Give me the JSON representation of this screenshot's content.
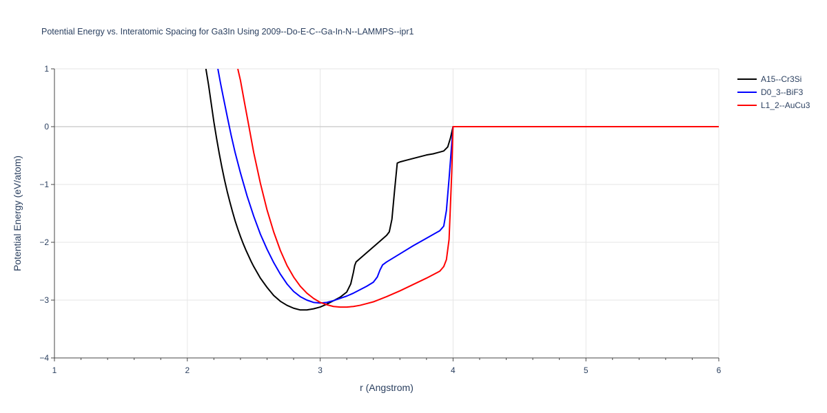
{
  "chart_data": {
    "type": "line",
    "title": "Potential Energy vs. Interatomic Spacing for Ga3In Using 2009--Do-E-C--Ga-In-N--LAMMPS--ipr1",
    "xlabel": "r (Angstrom)",
    "ylabel": "Potential Energy (eV/atom)",
    "xlim": [
      1,
      6
    ],
    "ylim": [
      -4,
      1
    ],
    "xticks": [
      1,
      2,
      3,
      4,
      5,
      6
    ],
    "yticks": [
      -4,
      -3,
      -2,
      -1,
      0,
      1
    ],
    "xtick_labels": [
      "1",
      "2",
      "3",
      "4",
      "5",
      "6"
    ],
    "ytick_labels": [
      "−4",
      "−3",
      "−2",
      "−1",
      "0",
      "1"
    ],
    "grid": true,
    "legend_position": "top-right",
    "series": [
      {
        "name": "A15--Cr3Si",
        "color": "#000000",
        "x": [
          2.14,
          2.16,
          2.18,
          2.2,
          2.22,
          2.24,
          2.26,
          2.28,
          2.3,
          2.32,
          2.34,
          2.36,
          2.38,
          2.4,
          2.42,
          2.44,
          2.46,
          2.48,
          2.5,
          2.55,
          2.6,
          2.65,
          2.7,
          2.75,
          2.8,
          2.85,
          2.9,
          2.95,
          3.0,
          3.05,
          3.1,
          3.15,
          3.2,
          3.23,
          3.25,
          3.26,
          3.27,
          3.3,
          3.35,
          3.4,
          3.45,
          3.5,
          3.52,
          3.54,
          3.56,
          3.58,
          3.6,
          3.65,
          3.7,
          3.75,
          3.8,
          3.85,
          3.9,
          3.93,
          3.96,
          3.98,
          4.0,
          4.2,
          4.5,
          5.0,
          5.5,
          6.0
        ],
        "y": [
          1.0,
          0.72,
          0.4,
          0.08,
          -0.2,
          -0.46,
          -0.7,
          -0.92,
          -1.12,
          -1.3,
          -1.47,
          -1.63,
          -1.77,
          -1.9,
          -2.02,
          -2.13,
          -2.23,
          -2.33,
          -2.42,
          -2.62,
          -2.78,
          -2.92,
          -3.02,
          -3.09,
          -3.14,
          -3.17,
          -3.17,
          -3.15,
          -3.12,
          -3.07,
          -3.01,
          -2.95,
          -2.86,
          -2.72,
          -2.52,
          -2.4,
          -2.34,
          -2.28,
          -2.18,
          -2.08,
          -1.98,
          -1.88,
          -1.82,
          -1.6,
          -1.1,
          -0.63,
          -0.61,
          -0.58,
          -0.55,
          -0.52,
          -0.49,
          -0.47,
          -0.44,
          -0.42,
          -0.35,
          -0.2,
          0.0,
          0.0,
          0.0,
          0.0,
          0.0,
          0.0
        ]
      },
      {
        "name": "D0_3--BiF3",
        "color": "#0000ff",
        "x": [
          2.23,
          2.25,
          2.27,
          2.3,
          2.33,
          2.36,
          2.4,
          2.45,
          2.5,
          2.55,
          2.6,
          2.65,
          2.7,
          2.75,
          2.8,
          2.85,
          2.9,
          2.95,
          3.0,
          3.05,
          3.1,
          3.15,
          3.2,
          3.25,
          3.3,
          3.35,
          3.4,
          3.43,
          3.45,
          3.47,
          3.5,
          3.6,
          3.7,
          3.8,
          3.9,
          3.93,
          3.95,
          3.97,
          3.99,
          4.0,
          4.2,
          4.5,
          5.0,
          5.5,
          6.0
        ],
        "y": [
          1.0,
          0.75,
          0.52,
          0.18,
          -0.15,
          -0.45,
          -0.8,
          -1.2,
          -1.55,
          -1.86,
          -2.12,
          -2.35,
          -2.55,
          -2.72,
          -2.85,
          -2.94,
          -3.0,
          -3.04,
          -3.05,
          -3.04,
          -3.01,
          -2.97,
          -2.93,
          -2.88,
          -2.82,
          -2.76,
          -2.69,
          -2.6,
          -2.48,
          -2.39,
          -2.34,
          -2.2,
          -2.06,
          -1.93,
          -1.8,
          -1.72,
          -1.45,
          -0.9,
          -0.3,
          0.0,
          0.0,
          0.0,
          0.0,
          0.0,
          0.0
        ]
      },
      {
        "name": "L1_2--AuCu3",
        "color": "#ff0000",
        "x": [
          2.38,
          2.4,
          2.43,
          2.46,
          2.5,
          2.55,
          2.6,
          2.65,
          2.7,
          2.75,
          2.8,
          2.85,
          2.9,
          2.95,
          3.0,
          3.05,
          3.1,
          3.15,
          3.2,
          3.25,
          3.3,
          3.35,
          3.4,
          3.5,
          3.6,
          3.7,
          3.8,
          3.9,
          3.93,
          3.95,
          3.97,
          3.99,
          4.0,
          4.2,
          4.5,
          5.0,
          5.5,
          6.0
        ],
        "y": [
          1.0,
          0.8,
          0.42,
          0.05,
          -0.45,
          -0.98,
          -1.44,
          -1.82,
          -2.14,
          -2.4,
          -2.6,
          -2.76,
          -2.88,
          -2.97,
          -3.04,
          -3.08,
          -3.11,
          -3.12,
          -3.12,
          -3.11,
          -3.09,
          -3.06,
          -3.03,
          -2.94,
          -2.84,
          -2.73,
          -2.62,
          -2.5,
          -2.42,
          -2.3,
          -1.95,
          -0.8,
          0.0,
          0.0,
          0.0,
          0.0,
          0.0,
          0.0
        ]
      }
    ]
  }
}
